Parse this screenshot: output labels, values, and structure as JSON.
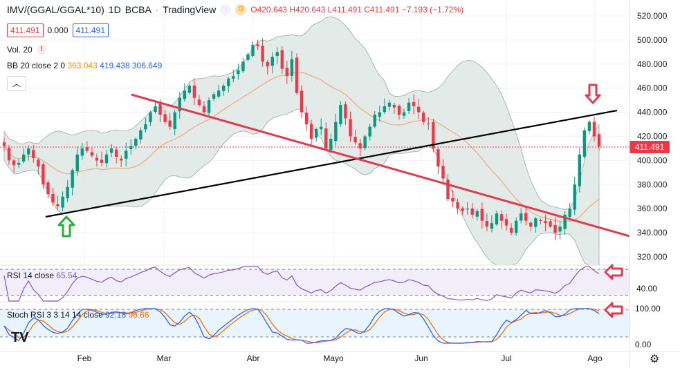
{
  "header": {
    "symbol": "IMV/(GGAL/GGAL*10)",
    "interval": "1D",
    "exchange": "BCBA",
    "source": "TradingView",
    "ohlc": {
      "o": "O420.643",
      "h": "H420.643",
      "l": "L411.491",
      "c": "C411.491",
      "chg": "−7.193 (−1.72%)"
    }
  },
  "price_boxes": {
    "bid": "411.491",
    "spread": "0.000",
    "ask": "411.491"
  },
  "volume_label": "Vol. 20",
  "bb_label": {
    "name": "BB 20 close 2 0",
    "basis": "363.043",
    "upper": "419.438",
    "lower": "306.649"
  },
  "rsi_label": {
    "name": "RSI 14 close",
    "value": "65.54"
  },
  "stoch_label": {
    "name": "Stoch RSI 3 3 14 14 close",
    "k": "92.18",
    "d": "96.66"
  },
  "icons": {
    "collapse": "chevron-up-icon",
    "logo": "tradingview-logo-icon",
    "settings": "gear-icon"
  },
  "last_price_tag": "411.491",
  "colors": {
    "up": "#089981",
    "down": "#f23645",
    "bb_fill": "#dfe8e6",
    "bb_basis": "#f3a77a",
    "rsi": "#7e57c2",
    "stoch_k": "#2962ff",
    "stoch_d": "#ff6d00",
    "trend_black": "#000000",
    "trend_red": "#e03a4e"
  },
  "chart_data": {
    "type": "candlestick",
    "y_axis": {
      "ticks": [
        "520.000",
        "500.000",
        "480.000",
        "460.000",
        "440.000",
        "420.000",
        "400.000",
        "380.000",
        "360.000",
        "340.000",
        "320.000"
      ],
      "ylim": [
        310,
        525
      ]
    },
    "x_axis": {
      "ticks": [
        "Feb",
        "Mar",
        "Abr",
        "Mayo",
        "Jun",
        "Jul",
        "Ago"
      ]
    },
    "rsi_axis": {
      "ticks": [
        "40.00"
      ]
    },
    "stoch_axis": {
      "ticks": [
        "100.00",
        "0.00"
      ]
    },
    "close_path": [
      412,
      400,
      396,
      398,
      405,
      410,
      402,
      395,
      380,
      372,
      365,
      362,
      370,
      378,
      392,
      405,
      410,
      408,
      404,
      400,
      398,
      405,
      410,
      403,
      400,
      408,
      412,
      418,
      425,
      430,
      440,
      445,
      438,
      432,
      428,
      440,
      452,
      458,
      462,
      452,
      446,
      440,
      450,
      455,
      458,
      462,
      468,
      470,
      475,
      482,
      488,
      496,
      495,
      482,
      478,
      486,
      490,
      476,
      470,
      484,
      456,
      440,
      430,
      418,
      426,
      428,
      410,
      418,
      432,
      446,
      435,
      420,
      415,
      410,
      420,
      428,
      438,
      440,
      445,
      448,
      444,
      438,
      440,
      448,
      445,
      440,
      432,
      430,
      410,
      395,
      385,
      368,
      366,
      360,
      358,
      360,
      355,
      358,
      350,
      345,
      348,
      356,
      350,
      346,
      340,
      350,
      356,
      350,
      345,
      352,
      350,
      348,
      345,
      340,
      345,
      355,
      360,
      380,
      405,
      425,
      432,
      420,
      411.491
    ]
  }
}
